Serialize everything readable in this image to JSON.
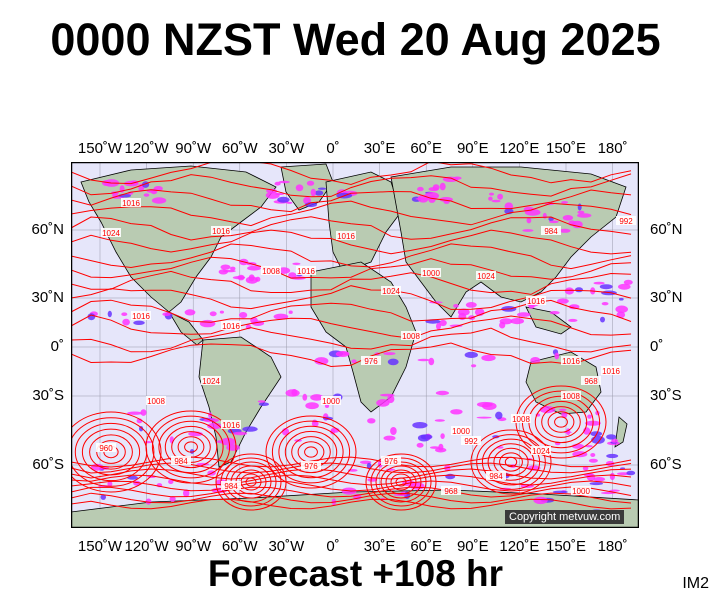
{
  "title": "0000 NZST Wed 20 Aug 2025",
  "footer": "Forecast +108 hr",
  "image_id_label": "IM2",
  "copyright": "Copyright metvuw.com",
  "longitude_labels": [
    "150˚W",
    "120˚W",
    "90˚W",
    "60˚W",
    "30˚W",
    "0˚",
    "30˚E",
    "60˚E",
    "90˚E",
    "120˚E",
    "150˚E",
    "180˚"
  ],
  "latitude_labels": [
    "60˚N",
    "30˚N",
    "0˚",
    "30˚S",
    "60˚S"
  ],
  "isobar_labels": [
    "1016",
    "1024",
    "1016",
    "1008",
    "1016",
    "1024",
    "1008",
    "1016",
    "1016",
    "1008",
    "1000",
    "1024",
    "1016",
    "1016",
    "1024",
    "1016",
    "992",
    "1000",
    "1008",
    "984",
    "976",
    "968",
    "960",
    "984",
    "976",
    "984",
    "1024",
    "1016",
    "968",
    "1008",
    "1000",
    "992",
    "984",
    "976",
    "1000",
    "1016"
  ],
  "colors": {
    "ocean": "#e6e6fa",
    "land": "#b9cbb2",
    "isobar": "#ff0000",
    "rain_light": "#ff33ff",
    "rain_heavy": "#6633ff",
    "coast": "#000000",
    "grid": "#9999aa"
  }
}
